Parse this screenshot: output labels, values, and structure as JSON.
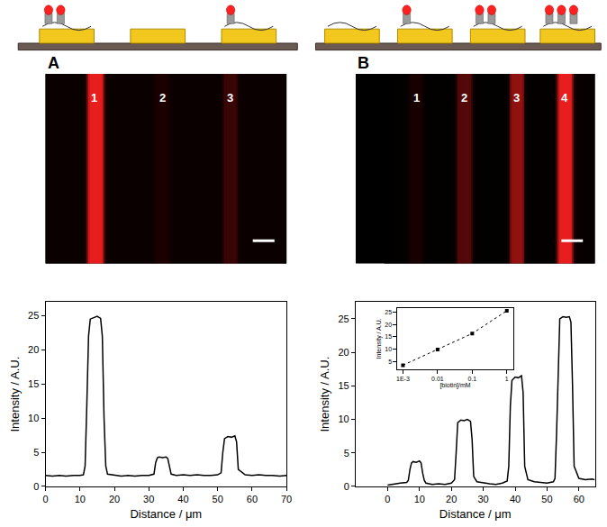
{
  "chart_data": [
    {
      "type": "line",
      "title": "A",
      "color": "#000000",
      "xlabel": "Distance / μm",
      "ylabel": "Intensity / A.U.",
      "x": [
        0,
        2,
        4,
        6,
        8,
        10,
        11,
        11.5,
        12,
        12.5,
        13,
        14,
        15,
        16,
        16.5,
        17,
        17.5,
        18,
        20,
        22,
        24,
        26,
        28,
        30,
        31.5,
        32,
        32.5,
        33,
        34,
        35,
        35.5,
        36,
        36.5,
        38,
        40,
        42,
        44,
        46,
        48,
        50,
        51,
        51.5,
        52,
        53,
        54,
        55,
        55.5,
        56,
        58,
        60,
        62,
        64,
        66,
        68,
        70
      ],
      "values": [
        1.6,
        1.5,
        1.6,
        1.5,
        1.6,
        1.6,
        1.7,
        3,
        12,
        22,
        24.5,
        24.7,
        24.9,
        24.6,
        22,
        10,
        3,
        1.8,
        1.6,
        1.5,
        1.6,
        1.5,
        1.6,
        1.6,
        1.8,
        3.5,
        4.2,
        4.3,
        4.2,
        4.3,
        4.1,
        3,
        1.8,
        1.6,
        1.7,
        1.6,
        1.7,
        1.6,
        1.6,
        1.7,
        2,
        5,
        7,
        7.3,
        7.2,
        7.4,
        6.5,
        2.5,
        1.7,
        1.6,
        1.7,
        1.6,
        1.6,
        1.5,
        1.6
      ],
      "xlim": [
        0,
        70
      ],
      "ylim": [
        0,
        27
      ],
      "xticks": [
        0,
        10,
        20,
        30,
        40,
        50,
        60,
        70
      ],
      "yticks": [
        0,
        5,
        10,
        15,
        20,
        25
      ],
      "annotations": [
        {
          "text": "1",
          "x": 14
        },
        {
          "text": "2",
          "x": 34
        },
        {
          "text": "3",
          "x": 53.5
        }
      ]
    },
    {
      "type": "line",
      "title": "B",
      "color": "#000000",
      "xlabel": "Distance / μm",
      "ylabel": "Intensity / A.U.",
      "x": [
        0,
        2,
        4,
        6,
        6.5,
        7,
        7.5,
        8,
        9,
        10,
        10.5,
        11,
        11.5,
        12,
        14,
        16,
        18,
        20,
        21,
        21.5,
        22,
        23,
        24,
        25,
        26,
        26.5,
        27,
        28,
        30,
        32,
        34,
        36,
        37.5,
        38,
        38.5,
        39,
        40,
        41,
        42,
        42.5,
        43,
        44,
        46,
        48,
        50,
        52,
        52.5,
        53,
        53.5,
        54,
        55,
        56,
        57,
        57.5,
        58,
        58.5,
        60,
        62,
        64,
        65
      ],
      "values": [
        0.2,
        0.3,
        0.5,
        0.6,
        0.9,
        2.5,
        3.5,
        3.7,
        3.6,
        3.8,
        3.5,
        2,
        0.9,
        0.5,
        0.3,
        0.4,
        0.3,
        0.5,
        1,
        5,
        9.5,
        9.9,
        9.8,
        10,
        9.7,
        7,
        1.5,
        0.7,
        0.5,
        0.4,
        0.3,
        0.5,
        0.8,
        3,
        12,
        15.8,
        16.3,
        16.2,
        16.5,
        14,
        3,
        1,
        0.7,
        0.6,
        0.5,
        0.7,
        1.2,
        8,
        18,
        25,
        25.3,
        25.2,
        25.3,
        24.5,
        15,
        3,
        1.2,
        1,
        1.1,
        1
      ],
      "xlim": [
        -10,
        65
      ],
      "ylim": [
        0,
        27.5
      ],
      "xticks": [
        0,
        10,
        20,
        30,
        40,
        50,
        60
      ],
      "yticks": [
        0,
        5,
        10,
        15,
        20,
        25
      ],
      "annotations": [
        {
          "text": "1",
          "x": 9
        },
        {
          "text": "2",
          "x": 24
        },
        {
          "text": "3",
          "x": 40.5
        },
        {
          "text": "4",
          "x": 55.5
        }
      ]
    },
    {
      "type": "line",
      "color": "#000000",
      "xlabel": "[biotin]/mM",
      "ylabel": "Intensity / A.U.",
      "x": [
        0.001,
        0.01,
        0.1,
        1
      ],
      "values": [
        3.5,
        9.8,
        16.3,
        25.5
      ],
      "log": "x",
      "marker": "square",
      "line_style": "dotted",
      "xlim": [
        0.0007,
        1.5
      ],
      "ylim": [
        2,
        26.5
      ],
      "xticks": [
        {
          "value": 0.001,
          "label": "1E-3"
        },
        0.01,
        0.1,
        1
      ],
      "yticks": [
        5,
        10,
        15,
        20,
        25
      ]
    }
  ]
}
